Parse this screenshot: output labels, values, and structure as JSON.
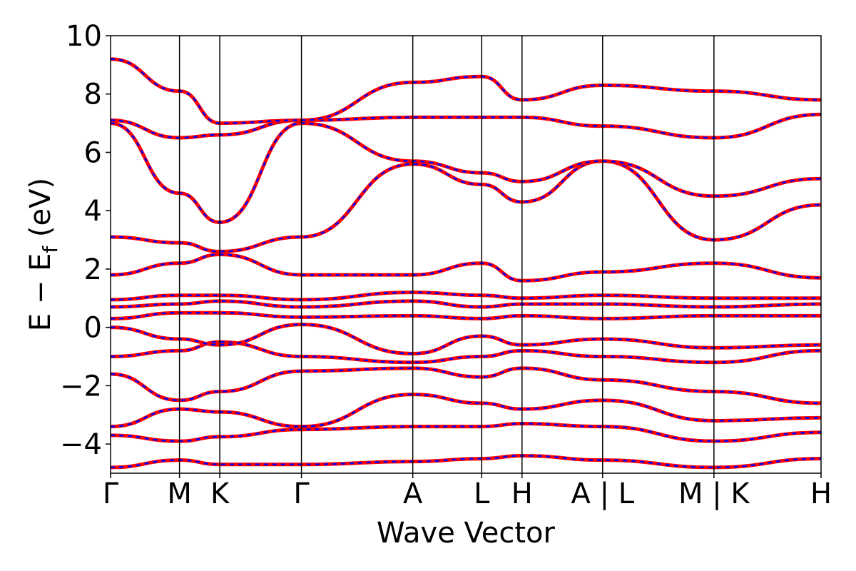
{
  "chart_data": {
    "type": "line",
    "title": "",
    "xlabel": "Wave Vector",
    "ylabel": "E − E",
    "ylabel_sub": "f",
    "ylabel_unit": " (eV)",
    "ylim": [
      -5,
      10
    ],
    "yticks": [
      -4,
      -2,
      0,
      2,
      4,
      6,
      8,
      10
    ],
    "ytick_labels": [
      "−4",
      "−2",
      "0",
      "2",
      "4",
      "6",
      "8",
      "10"
    ],
    "xlim": [
      0,
      10.4
    ],
    "kpath": [
      {
        "label": "Γ",
        "x": 0.0
      },
      {
        "label": "M",
        "x": 0.65
      },
      {
        "label": "K",
        "x": 1.03
      },
      {
        "label": "Γ",
        "x": 1.8
      },
      {
        "label": "A",
        "x": 2.85
      },
      {
        "label": "L",
        "x": 3.5
      },
      {
        "label": "H",
        "x": 3.88
      },
      {
        "label": "A|L",
        "x": 4.64
      },
      {
        "label": "M|K",
        "x": 5.69
      },
      {
        "label": "H",
        "x": 6.7
      }
    ],
    "grid": false,
    "legend": "none",
    "series_style": {
      "primary_color": "#ff0000",
      "dashed_overlay_color": "#0000ff"
    },
    "bands": [
      {
        "x": [
          0,
          0.65,
          1.03,
          1.8,
          2.85,
          3.5,
          3.88,
          4.64,
          5.69,
          6.7
        ],
        "y": [
          -4.8,
          -4.55,
          -4.7,
          -4.7,
          -4.6,
          -4.5,
          -4.4,
          -4.55,
          -4.8,
          -4.5
        ]
      },
      {
        "x": [
          0,
          0.65,
          1.03,
          1.8,
          2.85,
          3.5,
          3.88,
          4.64,
          5.69,
          6.7
        ],
        "y": [
          -3.7,
          -3.9,
          -3.75,
          -3.5,
          -3.4,
          -3.4,
          -3.3,
          -3.4,
          -3.9,
          -3.6
        ]
      },
      {
        "x": [
          0,
          0.65,
          1.03,
          1.8,
          2.85,
          3.5,
          3.88,
          4.64,
          5.69,
          6.7
        ],
        "y": [
          -3.4,
          -2.8,
          -2.9,
          -3.4,
          -2.3,
          -2.6,
          -2.8,
          -2.5,
          -3.2,
          -3.1
        ]
      },
      {
        "x": [
          0,
          0.65,
          1.03,
          1.8,
          2.85,
          3.5,
          3.88,
          4.64,
          5.69,
          6.7
        ],
        "y": [
          -1.6,
          -2.5,
          -2.2,
          -1.5,
          -1.4,
          -1.7,
          -1.4,
          -1.8,
          -2.2,
          -2.6
        ]
      },
      {
        "x": [
          0,
          0.65,
          1.03,
          1.8,
          2.85,
          3.5,
          3.88,
          4.64,
          5.69,
          6.7
        ],
        "y": [
          -1.0,
          -0.8,
          -0.5,
          -1.0,
          -1.2,
          -1.0,
          -0.8,
          -1.0,
          -1.2,
          -0.8
        ]
      },
      {
        "x": [
          0,
          0.65,
          1.03,
          1.8,
          2.85,
          3.5,
          3.88,
          4.64,
          5.69,
          6.7
        ],
        "y": [
          0.0,
          -0.4,
          -0.6,
          0.1,
          -0.9,
          -0.3,
          -0.6,
          -0.4,
          -0.7,
          -0.6
        ]
      },
      {
        "x": [
          0,
          0.65,
          1.03,
          1.8,
          2.85,
          3.5,
          3.88,
          4.64,
          5.69,
          6.7
        ],
        "y": [
          0.3,
          0.5,
          0.5,
          0.35,
          0.4,
          0.3,
          0.4,
          0.3,
          0.4,
          0.4
        ]
      },
      {
        "x": [
          0,
          0.65,
          1.03,
          1.8,
          2.85,
          3.5,
          3.88,
          4.64,
          5.69,
          6.7
        ],
        "y": [
          0.7,
          0.8,
          0.9,
          0.7,
          0.9,
          0.7,
          0.8,
          0.8,
          0.7,
          0.8
        ]
      },
      {
        "x": [
          0,
          0.65,
          1.03,
          1.8,
          2.85,
          3.5,
          3.88,
          4.64,
          5.69,
          6.7
        ],
        "y": [
          0.95,
          1.1,
          1.1,
          0.95,
          1.2,
          1.1,
          1.0,
          1.1,
          1.0,
          1.0
        ]
      },
      {
        "x": [
          0,
          0.65,
          1.03,
          1.8,
          2.85,
          3.5,
          3.88,
          4.64,
          5.69,
          6.7
        ],
        "y": [
          1.8,
          2.2,
          2.5,
          1.8,
          1.8,
          2.2,
          1.6,
          1.9,
          2.2,
          1.7
        ]
      },
      {
        "x": [
          0,
          0.65,
          1.03,
          1.8,
          2.85,
          3.5,
          3.88,
          4.64,
          5.69,
          6.7
        ],
        "y": [
          3.1,
          2.9,
          2.6,
          3.1,
          5.6,
          4.9,
          4.3,
          5.7,
          3.0,
          4.2
        ]
      },
      {
        "x": [
          0,
          0.65,
          1.03,
          1.8,
          2.85,
          3.5,
          3.88,
          4.64,
          5.69,
          6.7
        ],
        "y": [
          7.0,
          4.6,
          3.6,
          7.0,
          5.7,
          5.3,
          5.0,
          5.7,
          4.5,
          5.1
        ]
      },
      {
        "x": [
          0,
          0.65,
          1.03,
          1.8,
          2.85,
          3.5,
          3.88,
          4.64,
          5.69,
          6.7
        ],
        "y": [
          7.1,
          6.5,
          6.6,
          7.1,
          7.2,
          7.2,
          7.2,
          6.9,
          6.5,
          7.3
        ]
      },
      {
        "x": [
          0,
          0.65,
          1.03,
          1.8,
          2.85,
          3.5,
          3.88,
          4.64,
          5.69,
          6.7
        ],
        "y": [
          9.2,
          8.1,
          7.0,
          7.1,
          8.4,
          8.6,
          7.8,
          8.3,
          8.1,
          7.8
        ]
      }
    ]
  }
}
